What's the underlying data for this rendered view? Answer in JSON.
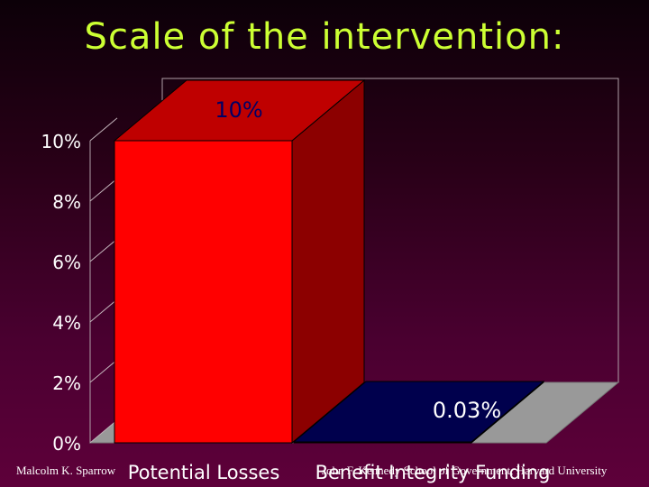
{
  "slide": {
    "title": "Scale of the intervention:"
  },
  "footer": {
    "author": "Malcolm K. Sparrow",
    "source": "John F. Kennedy School of Government, Harvard University"
  },
  "colors": {
    "title": "#ccff33",
    "bar_potential_losses": "#ff0000",
    "bar_benefit_integrity": "#000066",
    "axis_text": "#ffffff",
    "floor": "#999999"
  },
  "chart_data": {
    "type": "bar",
    "style": "3d",
    "categories": [
      "Potential Losses",
      "Benefit Integrity Funding"
    ],
    "values": [
      10,
      0.03
    ],
    "data_labels": [
      "10%",
      "0.03%"
    ],
    "y_ticks": [
      "0%",
      "2%",
      "4%",
      "6%",
      "8%",
      "10%"
    ],
    "ylim": [
      0,
      10
    ],
    "grid": false,
    "legend": "none"
  }
}
